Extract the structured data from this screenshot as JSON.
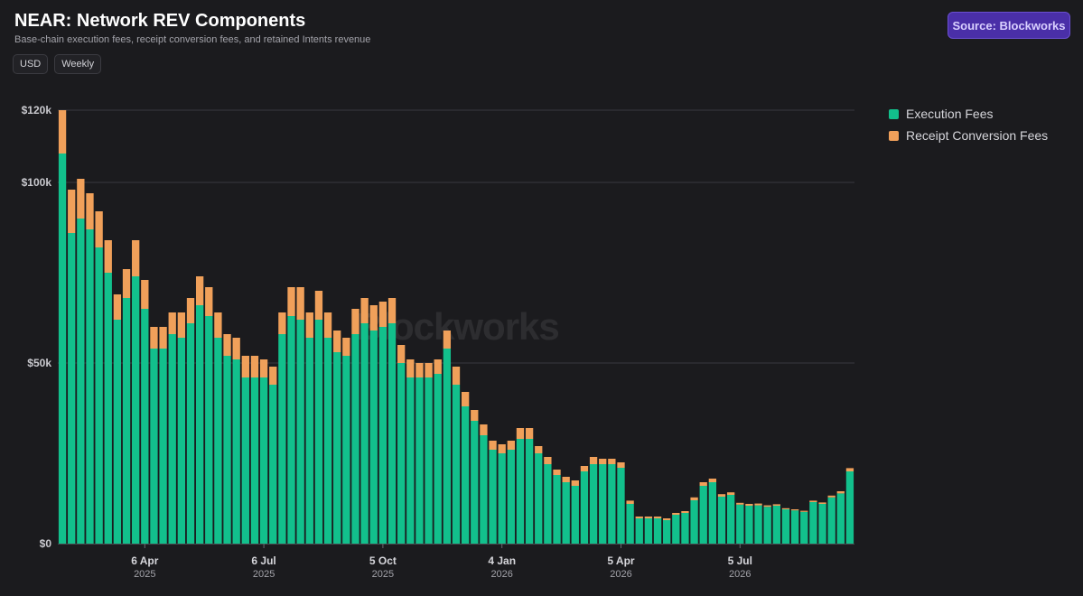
{
  "header": {
    "title": "NEAR: Network REV Components",
    "subtitle": "Base-chain execution fees, receipt conversion fees, and retained Intents revenue",
    "pills": [
      "USD",
      "Weekly"
    ],
    "source_label": "Source: Blockworks",
    "watermark": "Blockworks"
  },
  "colors": {
    "execution": "#12c08c",
    "receipt": "#f0a05a",
    "grid": "#3a3a40",
    "accent": "#4a2fa8"
  },
  "chart_data": {
    "type": "bar",
    "stacked": true,
    "title": "NEAR: Network REV Components",
    "subtitle": "Base-chain execution fees, receipt conversion fees, and retained Intents revenue",
    "ylabel": "",
    "xlabel": "",
    "ylim": [
      0,
      123000
    ],
    "yticks": [
      {
        "value": 0,
        "label": "$0"
      },
      {
        "value": 50000,
        "label": "$50k"
      },
      {
        "value": 100000,
        "label": "$100k"
      },
      {
        "value": 120000,
        "label": "$120k"
      }
    ],
    "xticks": [
      {
        "index": 9,
        "label": "6 Apr",
        "year": "2025"
      },
      {
        "index": 22,
        "label": "6 Jul",
        "year": "2025"
      },
      {
        "index": 35,
        "label": "5 Oct",
        "year": "2025"
      },
      {
        "index": 48,
        "label": "4 Jan",
        "year": "2026"
      },
      {
        "index": 61,
        "label": "5 Apr",
        "year": "2026"
      },
      {
        "index": 74,
        "label": "5 Jul",
        "year": "2026"
      }
    ],
    "legend_position": "right",
    "grid": true,
    "series": [
      {
        "name": "Execution Fees",
        "color": "#12c08c",
        "values": [
          108000,
          86000,
          90000,
          87000,
          82000,
          75000,
          62000,
          68000,
          74000,
          65000,
          54000,
          54000,
          58000,
          57000,
          61000,
          66000,
          63000,
          57000,
          52000,
          51000,
          46000,
          46000,
          46000,
          44000,
          58000,
          63000,
          62000,
          57000,
          62000,
          57000,
          53000,
          52000,
          58000,
          61000,
          59000,
          60000,
          61000,
          50000,
          46000,
          46000,
          46000,
          47000,
          54000,
          44000,
          38000,
          34000,
          30000,
          26000,
          25000,
          26000,
          29000,
          29000,
          25000,
          22000,
          19000,
          17000,
          16000,
          20000,
          22000,
          22000,
          22000,
          21000,
          11000,
          7000,
          7000,
          7000,
          6500,
          8000,
          8500,
          12000,
          16000,
          17000,
          13000,
          13500,
          10800,
          10500,
          10600,
          10200,
          10500,
          9500,
          9200,
          8800,
          11500,
          11000,
          12800,
          13900,
          20000
        ]
      },
      {
        "name": "Receipt Conversion Fees",
        "color": "#f0a05a",
        "values": [
          12000,
          12000,
          11000,
          10000,
          10000,
          9000,
          7000,
          8000,
          10000,
          8000,
          6000,
          6000,
          6000,
          7000,
          7000,
          8000,
          8000,
          7000,
          6000,
          6000,
          6000,
          6000,
          5000,
          5000,
          6000,
          8000,
          9000,
          7000,
          8000,
          7000,
          6000,
          5000,
          7000,
          7000,
          7000,
          7000,
          7000,
          5000,
          5000,
          4000,
          4000,
          4000,
          5000,
          5000,
          4000,
          3000,
          3000,
          2500,
          2500,
          2500,
          3000,
          3000,
          2000,
          2000,
          1500,
          1500,
          1500,
          1500,
          2000,
          1500,
          1500,
          1500,
          900,
          500,
          500,
          500,
          500,
          500,
          500,
          800,
          1000,
          1000,
          700,
          700,
          500,
          500,
          500,
          400,
          400,
          300,
          300,
          300,
          400,
          400,
          500,
          600,
          900
        ]
      }
    ]
  }
}
